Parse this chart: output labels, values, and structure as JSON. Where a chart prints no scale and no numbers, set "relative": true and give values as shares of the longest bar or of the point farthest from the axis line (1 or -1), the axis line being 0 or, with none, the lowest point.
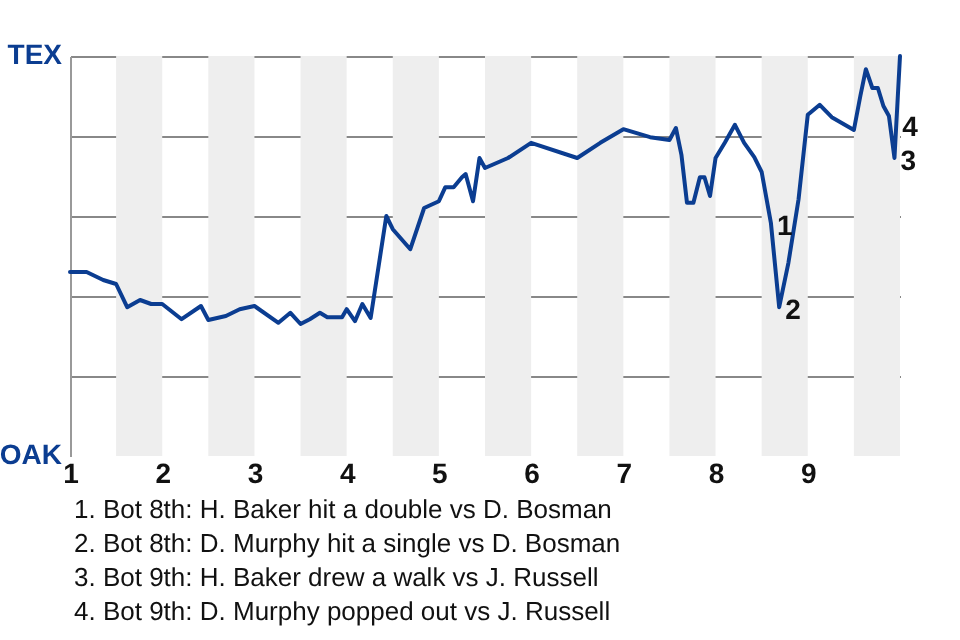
{
  "chart_data": {
    "type": "line",
    "relative": true,
    "xlim": [
      1,
      10
    ],
    "xticks": [
      1,
      2,
      3,
      4,
      5,
      6,
      7,
      8,
      9
    ],
    "grid": "y",
    "x": [
      1,
      1.18,
      1.36,
      1.5,
      1.62,
      1.76,
      1.88,
      2,
      2.21,
      2.42,
      2.5,
      2.69,
      2.84,
      3,
      3.26,
      3.39,
      3.5,
      3.6,
      3.71,
      3.79,
      3.95,
      4,
      4.09,
      4.17,
      4.26,
      4.43,
      4.5,
      4.69,
      4.84,
      5,
      5.07,
      5.16,
      5.25,
      5.29,
      5.37,
      5.44,
      5.5,
      5.75,
      6,
      6.5,
      6.75,
      7,
      7.29,
      7.5,
      7.57,
      7.63,
      7.69,
      7.76,
      7.83,
      7.88,
      7.94,
      8,
      8.1,
      8.21,
      8.31,
      8.42,
      8.5,
      8.6,
      8.69,
      8.79,
      8.9,
      9,
      9.13,
      9.26,
      9.5,
      9.57,
      9.63,
      9.7,
      9.76,
      9.82,
      9.88,
      9.94,
      10
    ],
    "series": [
      {
        "color": "#0b3d91",
        "values": [
          0.46,
          0.46,
          0.44,
          0.43,
          0.372,
          0.39,
          0.38,
          0.38,
          0.342,
          0.375,
          0.34,
          0.35,
          0.367,
          0.375,
          0.333,
          0.358,
          0.33,
          0.342,
          0.358,
          0.347,
          0.347,
          0.367,
          0.337,
          0.38,
          0.345,
          0.6,
          0.567,
          0.517,
          0.62,
          0.637,
          0.672,
          0.672,
          0.697,
          0.705,
          0.637,
          0.745,
          0.72,
          0.745,
          0.783,
          0.745,
          0.783,
          0.817,
          0.797,
          0.79,
          0.82,
          0.753,
          0.633,
          0.633,
          0.697,
          0.697,
          0.65,
          0.745,
          0.783,
          0.828,
          0.783,
          0.747,
          0.71,
          0.583,
          0.372,
          0.483,
          0.642,
          0.853,
          0.878,
          0.847,
          0.815,
          0.9,
          0.967,
          0.92,
          0.92,
          0.875,
          0.85,
          0.745,
          1.0
        ]
      }
    ],
    "bands": [
      {
        "axis": "x",
        "from": 1.5,
        "to": 2,
        "color": "#eeeeee"
      },
      {
        "axis": "x",
        "from": 2.5,
        "to": 3,
        "color": "#eeeeee"
      },
      {
        "axis": "x",
        "from": 3.5,
        "to": 4,
        "color": "#eeeeee"
      },
      {
        "axis": "x",
        "from": 4.5,
        "to": 5,
        "color": "#eeeeee"
      },
      {
        "axis": "x",
        "from": 5.5,
        "to": 6,
        "color": "#eeeeee"
      },
      {
        "axis": "x",
        "from": 6.5,
        "to": 7,
        "color": "#eeeeee"
      },
      {
        "axis": "x",
        "from": 7.5,
        "to": 8,
        "color": "#eeeeee"
      },
      {
        "axis": "x",
        "from": 8.5,
        "to": 9,
        "color": "#eeeeee"
      },
      {
        "axis": "x",
        "from": 9.5,
        "to": 10,
        "color": "#eeeeee"
      }
    ],
    "annotations": [
      "TEX",
      "OAK",
      {
        "text": "1",
        "x": 8.6,
        "y": 0.583
      },
      {
        "text": "2",
        "x": 8.69,
        "y": 0.372
      },
      {
        "text": "3",
        "x": 9.94,
        "y": 0.745
      },
      {
        "text": "4",
        "x": 9.96,
        "y": 0.83
      },
      "1. Bot 8th: H. Baker hit a double vs D. Bosman",
      "2. Bot 8th: D. Murphy hit a single vs D. Bosman",
      "3. Bot 9th: H. Baker drew a walk vs J. Russell",
      "4. Bot 9th: D. Murphy popped out vs J. Russell"
    ]
  }
}
